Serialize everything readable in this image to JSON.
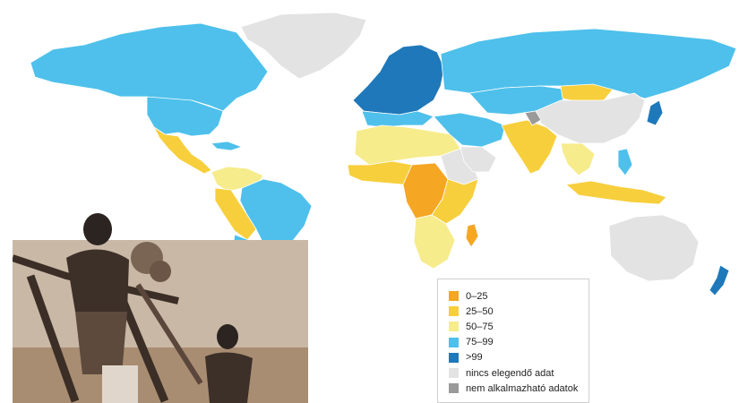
{
  "caption": "",
  "legend": {
    "items": [
      {
        "label": "0–25",
        "color": "#f5a623"
      },
      {
        "label": "25–50",
        "color": "#f7cf3c"
      },
      {
        "label": "50–75",
        "color": "#f6ec8c"
      },
      {
        "label": "75–99",
        "color": "#4ec0eb"
      },
      {
        "label": ">99",
        "color": "#1f78b9"
      },
      {
        "label": "nincs elegendő adat",
        "color": "#e3e3e3"
      },
      {
        "label": "nem alkalmazható adatok",
        "color": "#9a9a9a"
      }
    ]
  },
  "colors": {
    "water": "#ffffff",
    "photo_sepia": "#8a6a4c",
    "photo_dark": "#2b2420"
  }
}
